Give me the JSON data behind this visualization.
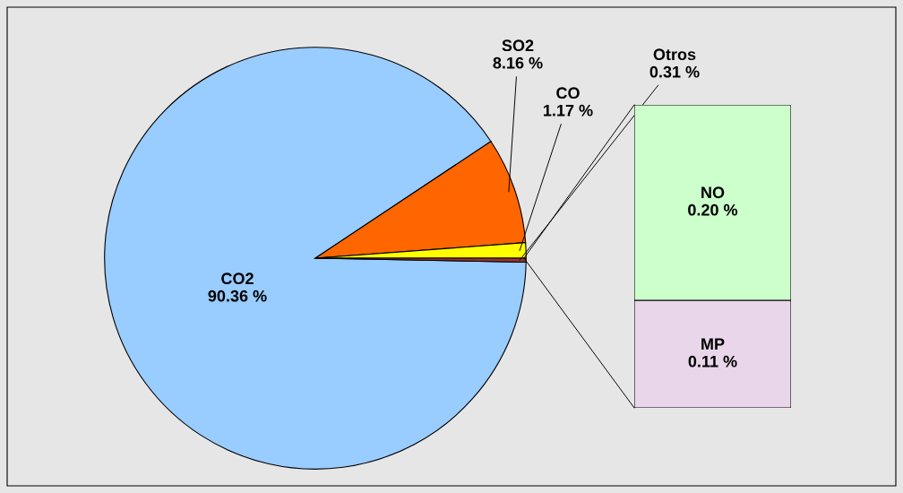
{
  "chart_data": [
    {
      "type": "pie",
      "categories": [
        "CO2",
        "SO2",
        "CO",
        "Otros"
      ],
      "values": [
        90.36,
        8.16,
        1.17,
        0.31
      ],
      "colors": [
        "#99ccff",
        "#ff6600",
        "#ffff00",
        "#993333"
      ],
      "value_labels": [
        "90.36 %",
        "8.16 %",
        "1.17 %",
        "0.31 %"
      ]
    },
    {
      "type": "bar",
      "stacked": true,
      "categories": [
        null
      ],
      "series": [
        {
          "name": "MP",
          "color": "#ead6ea",
          "values": [
            0.11
          ],
          "value_labels": [
            "0.11 %"
          ]
        },
        {
          "name": "NO",
          "color": "#ccffcc",
          "values": [
            0.2
          ],
          "value_labels": [
            "0.20 %"
          ]
        }
      ]
    }
  ]
}
